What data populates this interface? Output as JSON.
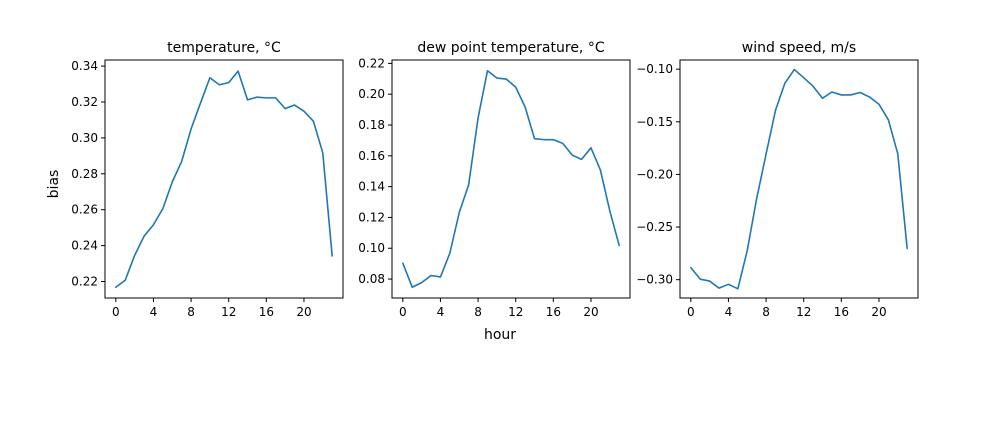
{
  "figure": {
    "ylabel": "bias",
    "xlabel": "hour",
    "line_color": "#1f77b4"
  },
  "chart_data": [
    {
      "type": "line",
      "title": "temperature, °C",
      "xlim": [
        -1.15,
        24.15
      ],
      "ylim": [
        0.2108,
        0.3434
      ],
      "xticks": [
        0,
        4,
        8,
        12,
        16,
        20
      ],
      "xtick_labels": [
        "0",
        "4",
        "8",
        "12",
        "16",
        "20"
      ],
      "yticks": [
        0.22,
        0.24,
        0.26,
        0.28,
        0.3,
        0.32,
        0.34
      ],
      "ytick_labels": [
        "0.22",
        "0.24",
        "0.26",
        "0.28",
        "0.30",
        "0.32",
        "0.34"
      ],
      "x": [
        0,
        1,
        2,
        3,
        4,
        5,
        6,
        7,
        8,
        9,
        10,
        11,
        12,
        13,
        14,
        15,
        16,
        17,
        18,
        19,
        20,
        21,
        22,
        23
      ],
      "values": [
        0.2168,
        0.2207,
        0.2345,
        0.2452,
        0.2516,
        0.2606,
        0.2755,
        0.2869,
        0.305,
        0.3194,
        0.3335,
        0.3296,
        0.3308,
        0.3372,
        0.3212,
        0.3227,
        0.3223,
        0.3223,
        0.3163,
        0.3183,
        0.3149,
        0.3093,
        0.2917,
        0.2342
      ]
    },
    {
      "type": "line",
      "title": "dew point temperature, °C",
      "xlim": [
        -1.15,
        24.15
      ],
      "ylim": [
        0.0677,
        0.2222
      ],
      "xticks": [
        0,
        4,
        8,
        12,
        16,
        20
      ],
      "xtick_labels": [
        "0",
        "4",
        "8",
        "12",
        "16",
        "20"
      ],
      "yticks": [
        0.08,
        0.1,
        0.12,
        0.14,
        0.16,
        0.18,
        0.2,
        0.22
      ],
      "ytick_labels": [
        "0.08",
        "0.10",
        "0.12",
        "0.14",
        "0.16",
        "0.18",
        "0.20",
        "0.22"
      ],
      "x": [
        0,
        1,
        2,
        3,
        4,
        5,
        6,
        7,
        8,
        9,
        10,
        11,
        12,
        13,
        14,
        15,
        16,
        17,
        18,
        19,
        20,
        21,
        22,
        23
      ],
      "values": [
        0.0903,
        0.0747,
        0.0777,
        0.0823,
        0.0814,
        0.0968,
        0.1232,
        0.1412,
        0.1846,
        0.2152,
        0.2105,
        0.2098,
        0.2046,
        0.1917,
        0.1711,
        0.1705,
        0.1705,
        0.1681,
        0.1605,
        0.1577,
        0.1652,
        0.1508,
        0.1244,
        0.1018
      ]
    },
    {
      "type": "line",
      "title": "wind speed, m/s",
      "xlim": [
        -1.15,
        24.15
      ],
      "ylim": [
        -0.3174,
        -0.0913
      ],
      "xticks": [
        0,
        4,
        8,
        12,
        16,
        20
      ],
      "xtick_labels": [
        "0",
        "4",
        "8",
        "12",
        "16",
        "20"
      ],
      "yticks": [
        -0.3,
        -0.25,
        -0.2,
        -0.15,
        -0.1
      ],
      "ytick_labels": [
        "−0.30",
        "−0.25",
        "−0.20",
        "−0.15",
        "−0.10"
      ],
      "x": [
        0,
        1,
        2,
        3,
        4,
        5,
        6,
        7,
        8,
        9,
        10,
        11,
        12,
        13,
        14,
        15,
        16,
        17,
        18,
        19,
        20,
        21,
        22,
        23
      ],
      "values": [
        -0.2886,
        -0.2995,
        -0.3013,
        -0.308,
        -0.3044,
        -0.3087,
        -0.2722,
        -0.2229,
        -0.1806,
        -0.1392,
        -0.1133,
        -0.1004,
        -0.1081,
        -0.1163,
        -0.1276,
        -0.1217,
        -0.1245,
        -0.1245,
        -0.1222,
        -0.1265,
        -0.1333,
        -0.1481,
        -0.1804,
        -0.2704
      ]
    }
  ]
}
